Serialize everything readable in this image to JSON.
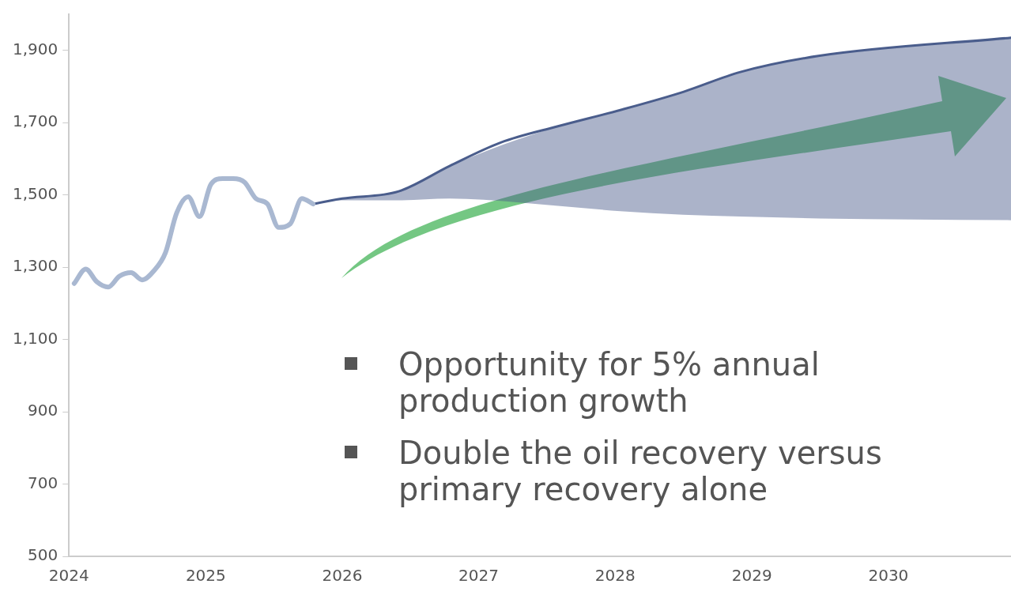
{
  "chart_data": {
    "type": "line",
    "series": [
      {
        "color": "#a9b8d1",
        "x": [
          "2024-01-15",
          "2024-02-15",
          "2024-03-15",
          "2024-04-15",
          "2024-05-15",
          "2024-06-15",
          "2024-07-15",
          "2024-08-15",
          "2024-09-15",
          "2024-10-15",
          "2024-11-15",
          "2024-12-15",
          "2025-01-15",
          "2025-02-15",
          "2025-03-15",
          "2025-04-15",
          "2025-05-15",
          "2025-06-15",
          "2025-07-15",
          "2025-08-15",
          "2025-09-15",
          "2025-10-15"
        ],
        "values": [
          1255,
          1295,
          1260,
          1245,
          1275,
          1285,
          1265,
          1290,
          1340,
          1450,
          1495,
          1440,
          1530,
          1545,
          1545,
          1535,
          1490,
          1475,
          1410,
          1420,
          1490,
          1475
        ]
      },
      {
        "color": "#4a5d8c",
        "x": [
          "2025-10-15",
          "2026-01-01",
          "2026-06-01",
          "2026-10-15",
          "2027-03-01",
          "2027-08-01",
          "2028-01-15",
          "2028-07-01",
          "2028-12-01",
          "2029-07-01",
          "2030-11-25"
        ],
        "values": [
          1475,
          1490,
          1510,
          1580,
          1645,
          1690,
          1735,
          1785,
          1840,
          1885,
          1935
        ],
        "lower": [
          1475,
          1485,
          1485,
          1490,
          null,
          1470,
          1455,
          1445,
          1440,
          1435,
          1430
        ],
        "upper": [
          1475,
          1490,
          1510,
          1580,
          null,
          1690,
          1735,
          1785,
          1840,
          1885,
          1935
        ]
      }
    ],
    "xlim": [
      "2024-01-01",
      "2030-11-25"
    ],
    "xticks": [
      "2024",
      "2025",
      "2026",
      "2027",
      "2028",
      "2029",
      "2030"
    ],
    "ylim": [
      500,
      2000
    ],
    "yticks": [
      {
        "value": 500,
        "label": "500"
      },
      {
        "value": 700,
        "label": "700"
      },
      {
        "value": 900,
        "label": "900"
      },
      {
        "value": 1100,
        "label": "1,100"
      },
      {
        "value": 1300,
        "label": "1,300"
      },
      {
        "value": 1500,
        "label": "1,500"
      },
      {
        "value": 1700,
        "label": "1,700"
      },
      {
        "value": 1900,
        "label": "1,900"
      }
    ],
    "grid": false,
    "legend": false,
    "marker": "none",
    "line_style": "solid",
    "annotations": [
      "Opportunity for 5% annual production growth",
      "Double the oil recovery versus primary recovery alone"
    ]
  }
}
